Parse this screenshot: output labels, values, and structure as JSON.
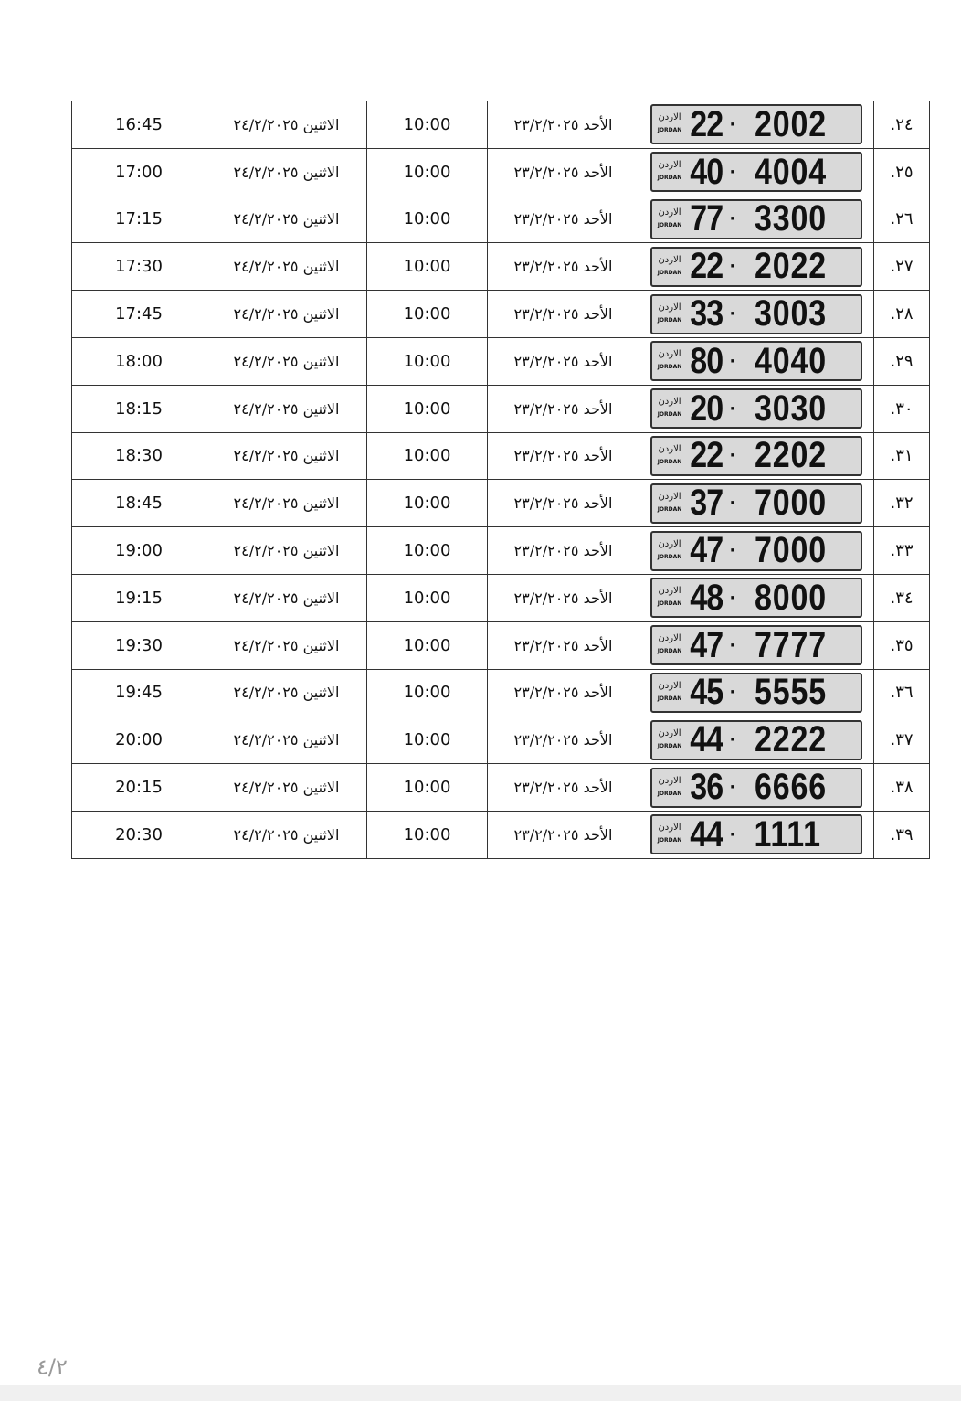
{
  "plate_country_ar": "الاردن",
  "plate_country_en": "JORDAN",
  "rows": [
    {
      "num": "٢٤.",
      "code": "22",
      "plate": "2002",
      "date1": "الأحد ٢٣/٢/٢٠٢٥",
      "time1": "10:00",
      "date2": "الاثنين ٢٤/٢/٢٠٢٥",
      "time2": "16:45"
    },
    {
      "num": "٢٥.",
      "code": "40",
      "plate": "4004",
      "date1": "الأحد ٢٣/٢/٢٠٢٥",
      "time1": "10:00",
      "date2": "الاثنين ٢٤/٢/٢٠٢٥",
      "time2": "17:00"
    },
    {
      "num": "٢٦.",
      "code": "77",
      "plate": "3300",
      "date1": "الأحد ٢٣/٢/٢٠٢٥",
      "time1": "10:00",
      "date2": "الاثنين ٢٤/٢/٢٠٢٥",
      "time2": "17:15"
    },
    {
      "num": "٢٧.",
      "code": "22",
      "plate": "2022",
      "date1": "الأحد ٢٣/٢/٢٠٢٥",
      "time1": "10:00",
      "date2": "الاثنين ٢٤/٢/٢٠٢٥",
      "time2": "17:30"
    },
    {
      "num": "٢٨.",
      "code": "33",
      "plate": "3003",
      "date1": "الأحد ٢٣/٢/٢٠٢٥",
      "time1": "10:00",
      "date2": "الاثنين ٢٤/٢/٢٠٢٥",
      "time2": "17:45"
    },
    {
      "num": "٢٩.",
      "code": "80",
      "plate": "4040",
      "date1": "الأحد ٢٣/٢/٢٠٢٥",
      "time1": "10:00",
      "date2": "الاثنين ٢٤/٢/٢٠٢٥",
      "time2": "18:00"
    },
    {
      "num": "٣٠.",
      "code": "20",
      "plate": "3030",
      "date1": "الأحد ٢٣/٢/٢٠٢٥",
      "time1": "10:00",
      "date2": "الاثنين ٢٤/٢/٢٠٢٥",
      "time2": "18:15"
    },
    {
      "num": "٣١.",
      "code": "22",
      "plate": "2202",
      "date1": "الأحد ٢٣/٢/٢٠٢٥",
      "time1": "10:00",
      "date2": "الاثنين ٢٤/٢/٢٠٢٥",
      "time2": "18:30"
    },
    {
      "num": "٣٢.",
      "code": "37",
      "plate": "7000",
      "date1": "الأحد ٢٣/٢/٢٠٢٥",
      "time1": "10:00",
      "date2": "الاثنين ٢٤/٢/٢٠٢٥",
      "time2": "18:45"
    },
    {
      "num": "٣٣.",
      "code": "47",
      "plate": "7000",
      "date1": "الأحد ٢٣/٢/٢٠٢٥",
      "time1": "10:00",
      "date2": "الاثنين ٢٤/٢/٢٠٢٥",
      "time2": "19:00"
    },
    {
      "num": "٣٤.",
      "code": "48",
      "plate": "8000",
      "date1": "الأحد ٢٣/٢/٢٠٢٥",
      "time1": "10:00",
      "date2": "الاثنين ٢٤/٢/٢٠٢٥",
      "time2": "19:15"
    },
    {
      "num": "٣٥.",
      "code": "47",
      "plate": "7777",
      "date1": "الأحد ٢٣/٢/٢٠٢٥",
      "time1": "10:00",
      "date2": "الاثنين ٢٤/٢/٢٠٢٥",
      "time2": "19:30"
    },
    {
      "num": "٣٦.",
      "code": "45",
      "plate": "5555",
      "date1": "الأحد ٢٣/٢/٢٠٢٥",
      "time1": "10:00",
      "date2": "الاثنين ٢٤/٢/٢٠٢٥",
      "time2": "19:45"
    },
    {
      "num": "٣٧.",
      "code": "44",
      "plate": "2222",
      "date1": "الأحد ٢٣/٢/٢٠٢٥",
      "time1": "10:00",
      "date2": "الاثنين ٢٤/٢/٢٠٢٥",
      "time2": "20:00"
    },
    {
      "num": "٣٨.",
      "code": "36",
      "plate": "6666",
      "date1": "الأحد ٢٣/٢/٢٠٢٥",
      "time1": "10:00",
      "date2": "الاثنين ٢٤/٢/٢٠٢٥",
      "time2": "20:15"
    },
    {
      "num": "٣٩.",
      "code": "44",
      "plate": "1111",
      "date1": "الأحد ٢٣/٢/٢٠٢٥",
      "time1": "10:00",
      "date2": "الاثنين ٢٤/٢/٢٠٢٥",
      "time2": "20:30"
    }
  ],
  "page_indicator": "٤/٢"
}
